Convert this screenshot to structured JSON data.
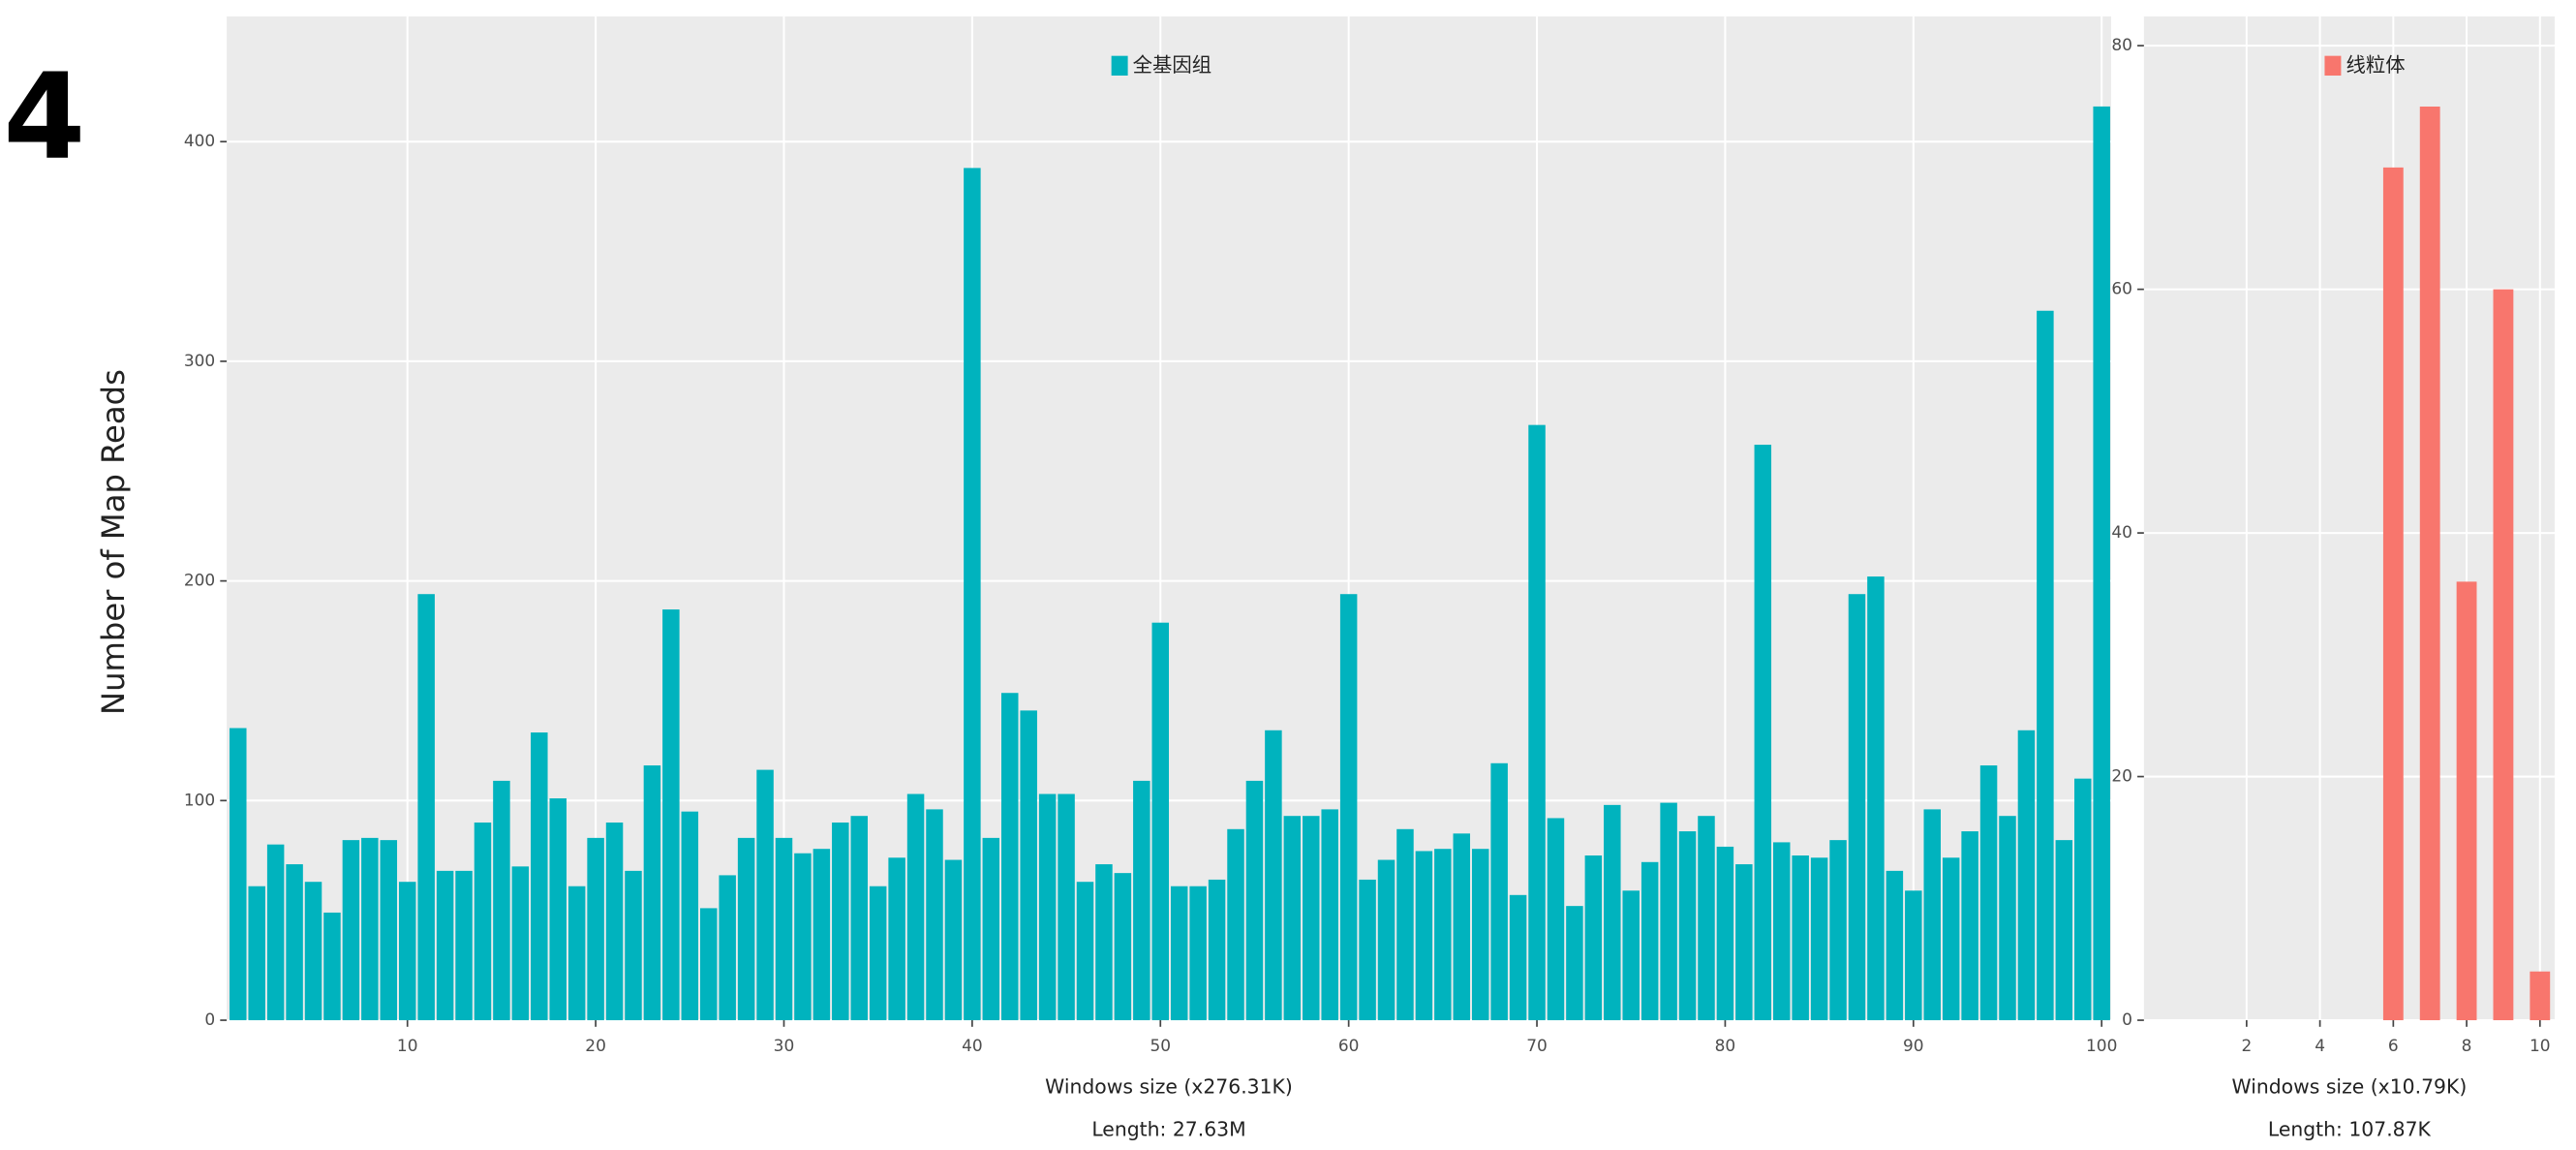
{
  "panel_label": "4",
  "chart_data": [
    {
      "type": "bar",
      "y_label": "Number of Map Reads",
      "x_label": "Windows size (x276.31K)",
      "x_sublabel": "Length: 27.63M",
      "legend": "top",
      "x": [
        1,
        2,
        3,
        4,
        5,
        6,
        7,
        8,
        9,
        10,
        11,
        12,
        13,
        14,
        15,
        16,
        17,
        18,
        19,
        20,
        21,
        22,
        23,
        24,
        25,
        26,
        27,
        28,
        29,
        30,
        31,
        32,
        33,
        34,
        35,
        36,
        37,
        38,
        39,
        40,
        41,
        42,
        43,
        44,
        45,
        46,
        47,
        48,
        49,
        50,
        51,
        52,
        53,
        54,
        55,
        56,
        57,
        58,
        59,
        60,
        61,
        62,
        63,
        64,
        65,
        66,
        67,
        68,
        69,
        70,
        71,
        72,
        73,
        74,
        75,
        76,
        77,
        78,
        79,
        80,
        81,
        82,
        83,
        84,
        85,
        86,
        87,
        88,
        89,
        90,
        91,
        92,
        93,
        94,
        95,
        96,
        97,
        98,
        99,
        100
      ],
      "series": [
        {
          "name": "全基因组",
          "color": "#00b3be",
          "values": [
            133,
            61,
            80,
            71,
            63,
            49,
            82,
            83,
            82,
            63,
            194,
            68,
            68,
            90,
            109,
            70,
            131,
            101,
            61,
            83,
            90,
            68,
            116,
            187,
            95,
            51,
            66,
            83,
            114,
            83,
            76,
            78,
            90,
            93,
            61,
            74,
            103,
            96,
            73,
            388,
            83,
            149,
            141,
            103,
            103,
            63,
            71,
            67,
            109,
            181,
            61,
            61,
            64,
            87,
            109,
            132,
            93,
            93,
            96,
            194,
            64,
            73,
            87,
            77,
            78,
            85,
            78,
            117,
            57,
            271,
            92,
            52,
            75,
            98,
            59,
            72,
            99,
            86,
            93,
            79,
            71,
            262,
            81,
            75,
            74,
            82,
            194,
            202,
            68,
            59,
            96,
            74,
            86,
            116,
            93,
            132,
            323,
            82,
            110,
            416
          ]
        }
      ],
      "xlim": [
        0.4,
        100.5
      ],
      "ylim": [
        0,
        457
      ],
      "xticks": [
        10,
        20,
        30,
        40,
        50,
        60,
        70,
        80,
        90,
        100
      ],
      "yticks": [
        0,
        100,
        200,
        300,
        400
      ],
      "grid": true
    },
    {
      "type": "bar",
      "x_label": "Windows size (x10.79K)",
      "x_sublabel": "Length: 107.87K",
      "legend": "top",
      "x": [
        1,
        2,
        3,
        4,
        5,
        6,
        7,
        8,
        9,
        10
      ],
      "series": [
        {
          "name": "线粒体",
          "color": "#F8766D",
          "values": [
            0,
            0,
            0,
            0,
            0,
            70,
            75,
            36,
            60,
            4
          ]
        }
      ],
      "xlim": [
        -0.8,
        10.4
      ],
      "ylim": [
        0,
        82.4
      ],
      "xticks": [
        2,
        4,
        6,
        8,
        10
      ],
      "yticks": [
        0,
        20,
        40,
        60,
        80
      ],
      "grid": true
    }
  ]
}
